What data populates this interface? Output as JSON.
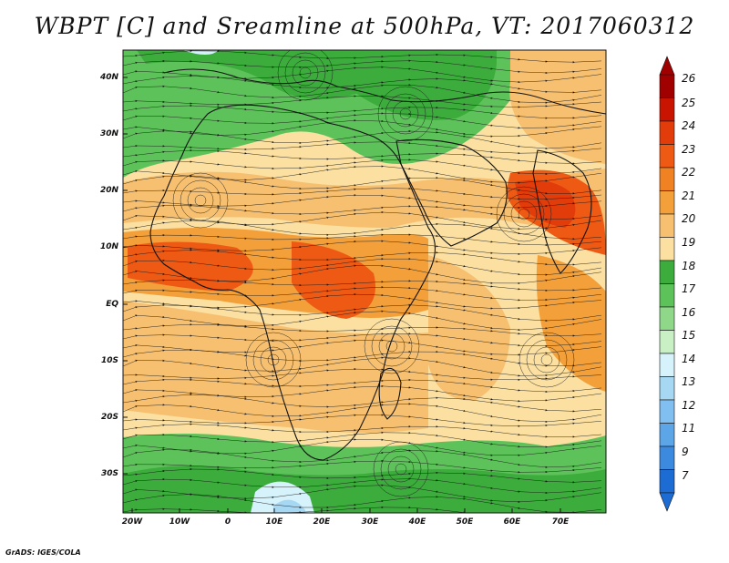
{
  "title": "WBPT [C] and Sreamline at 500hPa, VT: 2017060312",
  "credit": "GrADS: IGES/COLA",
  "lat_labels": [
    "40N",
    "30N",
    "20N",
    "10N",
    "EQ",
    "10S",
    "20S",
    "30S"
  ],
  "lon_labels": [
    "20W",
    "10W",
    "0",
    "10E",
    "20E",
    "30E",
    "40E",
    "50E",
    "60E",
    "70E"
  ],
  "colorbar": {
    "labels": [
      "26",
      "25",
      "24",
      "23",
      "22",
      "21",
      "20",
      "19",
      "18",
      "17",
      "16",
      "15",
      "14",
      "13",
      "12",
      "11",
      "9",
      "7"
    ],
    "colors": [
      "#a00000",
      "#c81400",
      "#e23c0a",
      "#ee5a14",
      "#f08224",
      "#f3a03a",
      "#f7c070",
      "#fbe0a2",
      "#3cac3c",
      "#5ec25a",
      "#8fd88a",
      "#c8f0c4",
      "#d6f3fb",
      "#a6d8f3",
      "#80bff0",
      "#5ca6e8",
      "#3c8ae0",
      "#1c6cd4"
    ]
  },
  "map_colors": {
    "green_dark": "#3cac3c",
    "green_mid": "#5ec25a",
    "green_light": "#8fd88a",
    "pale_yellow": "#fbe0a2",
    "tan": "#f7c070",
    "orange": "#f3a03a",
    "orange_deep": "#ee5a14",
    "red": "#e23c0a",
    "blue_light": "#a6d8f3",
    "cyan_light": "#d6f3fb"
  }
}
